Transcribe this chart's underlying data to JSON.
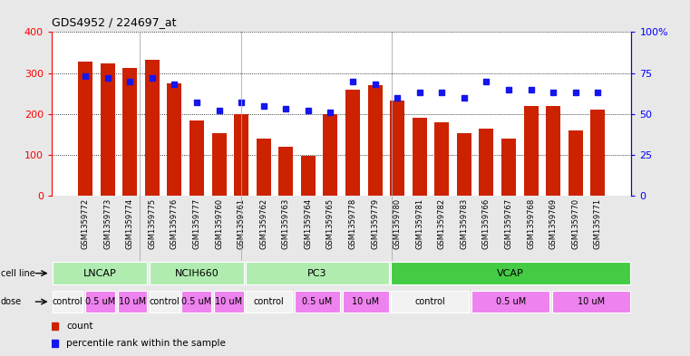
{
  "title": "GDS4952 / 224697_at",
  "samples": [
    "GSM1359772",
    "GSM1359773",
    "GSM1359774",
    "GSM1359775",
    "GSM1359776",
    "GSM1359777",
    "GSM1359760",
    "GSM1359761",
    "GSM1359762",
    "GSM1359763",
    "GSM1359764",
    "GSM1359765",
    "GSM1359778",
    "GSM1359779",
    "GSM1359780",
    "GSM1359781",
    "GSM1359782",
    "GSM1359783",
    "GSM1359766",
    "GSM1359767",
    "GSM1359768",
    "GSM1359769",
    "GSM1359770",
    "GSM1359771"
  ],
  "counts": [
    328,
    323,
    313,
    332,
    275,
    183,
    153,
    200,
    140,
    120,
    97,
    200,
    260,
    270,
    233,
    190,
    180,
    152,
    163,
    140,
    220,
    220,
    160,
    210
  ],
  "percentile_ranks": [
    73,
    72,
    70,
    72,
    68,
    57,
    52,
    57,
    55,
    53,
    52,
    51,
    70,
    68,
    60,
    63,
    63,
    60,
    70,
    65,
    65,
    63,
    63,
    63
  ],
  "cell_line_defs": [
    [
      "LNCAP",
      0,
      4,
      "#b0ecb0"
    ],
    [
      "NCIH660",
      4,
      8,
      "#b0ecb0"
    ],
    [
      "PC3",
      8,
      14,
      "#b0ecb0"
    ],
    [
      "VCAP",
      14,
      24,
      "#44cc44"
    ]
  ],
  "dose_defs": [
    [
      "control",
      0,
      1.33,
      "#f2f2f2"
    ],
    [
      "0.5 uM",
      1.33,
      2.67,
      "#ee82ee"
    ],
    [
      "10 uM",
      2.67,
      4.0,
      "#ee82ee"
    ],
    [
      "control",
      4.0,
      5.33,
      "#f2f2f2"
    ],
    [
      "0.5 uM",
      5.33,
      6.67,
      "#ee82ee"
    ],
    [
      "10 uM",
      6.67,
      8.0,
      "#ee82ee"
    ],
    [
      "control",
      8.0,
      10.0,
      "#f2f2f2"
    ],
    [
      "0.5 uM",
      10.0,
      12.0,
      "#ee82ee"
    ],
    [
      "10 uM",
      12.0,
      14.0,
      "#ee82ee"
    ],
    [
      "control",
      14.0,
      17.33,
      "#f2f2f2"
    ],
    [
      "0.5 uM",
      17.33,
      20.67,
      "#ee82ee"
    ],
    [
      "10 uM",
      20.67,
      24.0,
      "#ee82ee"
    ]
  ],
  "bar_color": "#cc2200",
  "dot_color": "#1515ee",
  "ylim_left": [
    0,
    400
  ],
  "ylim_right": [
    0,
    100
  ],
  "yticks_left": [
    0,
    100,
    200,
    300,
    400
  ],
  "yticks_right": [
    0,
    25,
    50,
    75,
    100
  ],
  "bg_color": "#e8e8e8",
  "plot_bg": "#ffffff",
  "grid_color": "#000000",
  "cell_line_label_fontsize": 8,
  "dose_label_fontsize": 7,
  "tick_label_fontsize": 6,
  "title_fontsize": 9
}
